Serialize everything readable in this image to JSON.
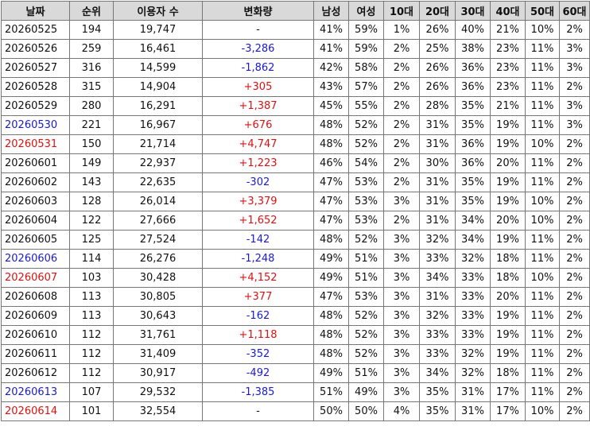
{
  "headers": [
    "날짜",
    "순위",
    "이용자 수",
    "변화량",
    "남성",
    "여성",
    "10대",
    "20대",
    "30대",
    "40대",
    "50대",
    "60대"
  ],
  "colors": {
    "header_bg": "#d9d9d9",
    "border": "#777777",
    "blue": "#1a1acc",
    "red": "#e01010",
    "text": "#111111"
  },
  "rows": [
    {
      "date": "20260525",
      "date_color": "black",
      "rank": "194",
      "users": "19,747",
      "change": "-",
      "change_color": "black",
      "male": "41%",
      "female": "59%",
      "a10": "1%",
      "a20": "26%",
      "a30": "40%",
      "a40": "21%",
      "a50": "10%",
      "a60": "2%"
    },
    {
      "date": "20260526",
      "date_color": "black",
      "rank": "259",
      "users": "16,461",
      "change": "-3,286",
      "change_color": "blue",
      "male": "41%",
      "female": "59%",
      "a10": "2%",
      "a20": "25%",
      "a30": "38%",
      "a40": "23%",
      "a50": "11%",
      "a60": "3%"
    },
    {
      "date": "20260527",
      "date_color": "black",
      "rank": "316",
      "users": "14,599",
      "change": "-1,862",
      "change_color": "blue",
      "male": "42%",
      "female": "58%",
      "a10": "2%",
      "a20": "26%",
      "a30": "36%",
      "a40": "23%",
      "a50": "11%",
      "a60": "3%"
    },
    {
      "date": "20260528",
      "date_color": "black",
      "rank": "315",
      "users": "14,904",
      "change": "+305",
      "change_color": "red",
      "male": "43%",
      "female": "57%",
      "a10": "2%",
      "a20": "26%",
      "a30": "36%",
      "a40": "23%",
      "a50": "11%",
      "a60": "2%"
    },
    {
      "date": "20260529",
      "date_color": "black",
      "rank": "280",
      "users": "16,291",
      "change": "+1,387",
      "change_color": "red",
      "male": "45%",
      "female": "55%",
      "a10": "2%",
      "a20": "28%",
      "a30": "35%",
      "a40": "21%",
      "a50": "11%",
      "a60": "3%"
    },
    {
      "date": "20260530",
      "date_color": "blue",
      "rank": "221",
      "users": "16,967",
      "change": "+676",
      "change_color": "red",
      "male": "48%",
      "female": "52%",
      "a10": "2%",
      "a20": "31%",
      "a30": "35%",
      "a40": "19%",
      "a50": "11%",
      "a60": "3%"
    },
    {
      "date": "20260531",
      "date_color": "red",
      "rank": "150",
      "users": "21,714",
      "change": "+4,747",
      "change_color": "red",
      "male": "48%",
      "female": "52%",
      "a10": "2%",
      "a20": "31%",
      "a30": "36%",
      "a40": "19%",
      "a50": "10%",
      "a60": "2%"
    },
    {
      "date": "20260601",
      "date_color": "black",
      "rank": "149",
      "users": "22,937",
      "change": "+1,223",
      "change_color": "red",
      "male": "46%",
      "female": "54%",
      "a10": "2%",
      "a20": "30%",
      "a30": "36%",
      "a40": "20%",
      "a50": "11%",
      "a60": "2%"
    },
    {
      "date": "20260602",
      "date_color": "black",
      "rank": "143",
      "users": "22,635",
      "change": "-302",
      "change_color": "blue",
      "male": "47%",
      "female": "53%",
      "a10": "2%",
      "a20": "31%",
      "a30": "35%",
      "a40": "19%",
      "a50": "11%",
      "a60": "2%"
    },
    {
      "date": "20260603",
      "date_color": "black",
      "rank": "128",
      "users": "26,014",
      "change": "+3,379",
      "change_color": "red",
      "male": "47%",
      "female": "53%",
      "a10": "3%",
      "a20": "31%",
      "a30": "35%",
      "a40": "19%",
      "a50": "10%",
      "a60": "2%"
    },
    {
      "date": "20260604",
      "date_color": "black",
      "rank": "122",
      "users": "27,666",
      "change": "+1,652",
      "change_color": "red",
      "male": "47%",
      "female": "53%",
      "a10": "2%",
      "a20": "31%",
      "a30": "34%",
      "a40": "20%",
      "a50": "10%",
      "a60": "2%"
    },
    {
      "date": "20260605",
      "date_color": "black",
      "rank": "125",
      "users": "27,524",
      "change": "-142",
      "change_color": "blue",
      "male": "48%",
      "female": "52%",
      "a10": "3%",
      "a20": "32%",
      "a30": "34%",
      "a40": "19%",
      "a50": "11%",
      "a60": "2%"
    },
    {
      "date": "20260606",
      "date_color": "blue",
      "rank": "114",
      "users": "26,276",
      "change": "-1,248",
      "change_color": "blue",
      "male": "49%",
      "female": "51%",
      "a10": "3%",
      "a20": "33%",
      "a30": "32%",
      "a40": "18%",
      "a50": "11%",
      "a60": "2%"
    },
    {
      "date": "20260607",
      "date_color": "red",
      "rank": "103",
      "users": "30,428",
      "change": "+4,152",
      "change_color": "red",
      "male": "49%",
      "female": "51%",
      "a10": "3%",
      "a20": "34%",
      "a30": "33%",
      "a40": "18%",
      "a50": "10%",
      "a60": "2%"
    },
    {
      "date": "20260608",
      "date_color": "black",
      "rank": "113",
      "users": "30,805",
      "change": "+377",
      "change_color": "red",
      "male": "47%",
      "female": "53%",
      "a10": "3%",
      "a20": "31%",
      "a30": "33%",
      "a40": "20%",
      "a50": "11%",
      "a60": "2%"
    },
    {
      "date": "20260609",
      "date_color": "black",
      "rank": "113",
      "users": "30,643",
      "change": "-162",
      "change_color": "blue",
      "male": "48%",
      "female": "52%",
      "a10": "3%",
      "a20": "32%",
      "a30": "33%",
      "a40": "19%",
      "a50": "11%",
      "a60": "2%"
    },
    {
      "date": "20260610",
      "date_color": "black",
      "rank": "112",
      "users": "31,761",
      "change": "+1,118",
      "change_color": "red",
      "male": "48%",
      "female": "52%",
      "a10": "3%",
      "a20": "33%",
      "a30": "33%",
      "a40": "19%",
      "a50": "11%",
      "a60": "2%"
    },
    {
      "date": "20260611",
      "date_color": "black",
      "rank": "112",
      "users": "31,409",
      "change": "-352",
      "change_color": "blue",
      "male": "48%",
      "female": "52%",
      "a10": "3%",
      "a20": "33%",
      "a30": "32%",
      "a40": "19%",
      "a50": "11%",
      "a60": "2%"
    },
    {
      "date": "20260612",
      "date_color": "black",
      "rank": "112",
      "users": "30,917",
      "change": "-492",
      "change_color": "blue",
      "male": "49%",
      "female": "51%",
      "a10": "3%",
      "a20": "34%",
      "a30": "32%",
      "a40": "18%",
      "a50": "11%",
      "a60": "2%"
    },
    {
      "date": "20260613",
      "date_color": "blue",
      "rank": "107",
      "users": "29,532",
      "change": "-1,385",
      "change_color": "blue",
      "male": "51%",
      "female": "49%",
      "a10": "3%",
      "a20": "35%",
      "a30": "31%",
      "a40": "17%",
      "a50": "11%",
      "a60": "2%"
    },
    {
      "date": "20260614",
      "date_color": "red",
      "rank": "101",
      "users": "32,554",
      "change": "-",
      "change_color": "black",
      "male": "50%",
      "female": "50%",
      "a10": "4%",
      "a20": "35%",
      "a30": "31%",
      "a40": "17%",
      "a50": "10%",
      "a60": "2%"
    }
  ]
}
